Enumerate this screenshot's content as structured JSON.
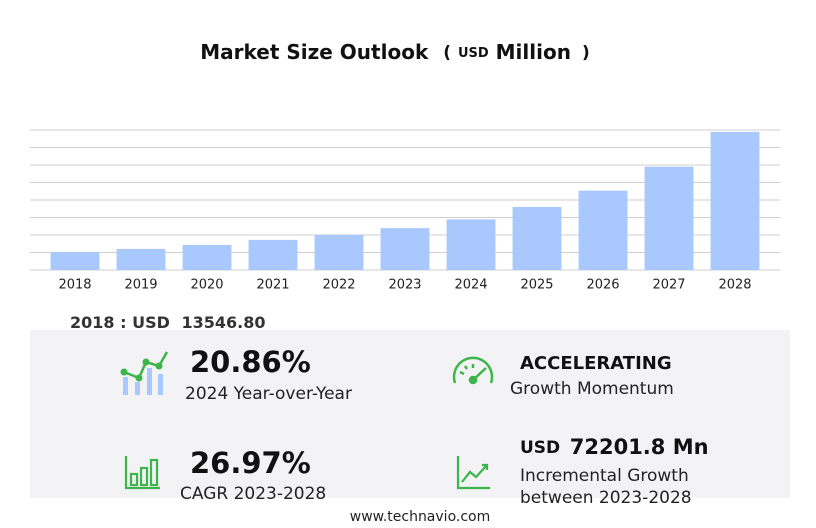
{
  "chart_data": {
    "type": "bar",
    "title": "Market Size Outlook",
    "unit_open": "(",
    "unit_currency": "USD",
    "unit": "Million",
    "unit_close": ")",
    "categories": [
      "2018",
      "2019",
      "2020",
      "2021",
      "2022",
      "2023",
      "2024",
      "2025",
      "2026",
      "2027",
      "2028"
    ],
    "values": [
      13546.8,
      15800,
      18800,
      22600,
      26300,
      31400,
      37950,
      47300,
      59500,
      77500,
      103600
    ],
    "color": "#a9c8fd",
    "ylim": [
      0,
      105000
    ],
    "grid": true
  },
  "highlights": {
    "base_label": "2018 : USD",
    "base_value": "13546.80",
    "yoy_value": "20.86%",
    "yoy_label": "2024 Year-over-Year",
    "momentum_value": "ACCELERATING",
    "momentum_label": "Growth Momentum",
    "cagr_value": "26.97%",
    "cagr_label": "CAGR 2023-2028",
    "incr_currency": "USD",
    "incr_value": "72201.8 Mn",
    "incr_label_1": "Incremental Growth",
    "incr_label_2": "between 2023-2028",
    "source": "www.technavio.com"
  }
}
